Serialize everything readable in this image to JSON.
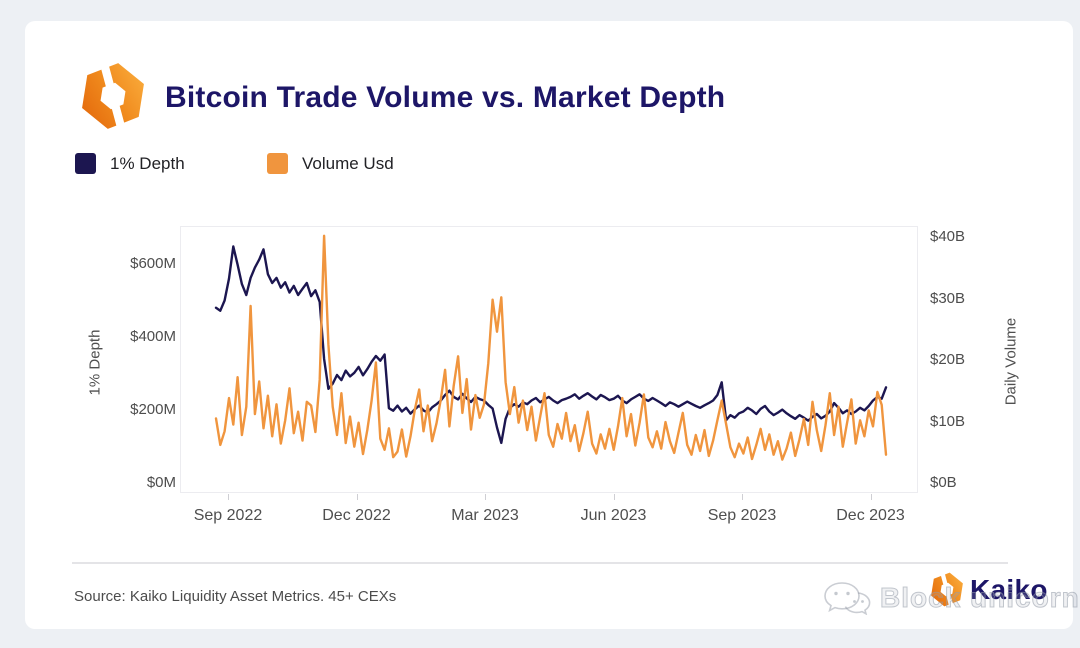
{
  "page": {
    "background": "#edf0f4",
    "card_background": "#ffffff"
  },
  "header": {
    "title": "Bitcoin Trade Volume vs. Market Depth",
    "logo_icon": "kaiko-hexagon-icon"
  },
  "colors": {
    "depth_navy": "#1c1650",
    "volume_orange": "#f0953e",
    "title_navy": "#1d1667",
    "axis_text_gray": "#4d4d4d"
  },
  "footer": {
    "source": "Source: Kaiko Liquidity Asset Metrics. 45+ CEXs",
    "brand_name": "Kaiko",
    "brand_icon": "kaiko-hexagon-icon",
    "watermark_text": "Block unicorn",
    "watermark_icon": "wechat-chat-bubbles-icon"
  },
  "chart_data": {
    "type": "line",
    "title": "Bitcoin Trade Volume vs. Market Depth",
    "x_ticks": [
      "Sep 2022",
      "Dec 2022",
      "Mar 2023",
      "Jun 2023",
      "Sep 2023",
      "Dec 2023"
    ],
    "x_range_note": "daily data, late Aug 2022 to mid Dec 2023",
    "grid": "off",
    "legend_position": "top-left",
    "left_axis": {
      "label": "1% Depth",
      "unit": "$M",
      "ticks": [
        "$0M",
        "$200M",
        "$400M",
        "$600M"
      ],
      "tick_values": [
        0,
        200,
        400,
        600
      ],
      "range": [
        0,
        700
      ]
    },
    "right_axis": {
      "label": "Daily Volume",
      "unit": "$B",
      "ticks": [
        "$0B",
        "$10B",
        "$20B",
        "$30B",
        "$40B"
      ],
      "tick_values": [
        0,
        10,
        20,
        30,
        40
      ],
      "range": [
        0,
        42
      ]
    },
    "series": [
      {
        "name": "1% Depth",
        "axis": "left",
        "unit": "$M",
        "color": "#1c1650",
        "values": [
          480,
          472,
          500,
          560,
          648,
          598,
          545,
          515,
          562,
          590,
          612,
          640,
          572,
          548,
          562,
          535,
          550,
          522,
          540,
          515,
          532,
          548,
          512,
          528,
          496,
          340,
          258,
          272,
          296,
          282,
          308,
          292,
          302,
          318,
          295,
          312,
          332,
          348,
          335,
          352,
          205,
          198,
          212,
          196,
          206,
          190,
          202,
          212,
          199,
          193,
          207,
          216,
          226,
          241,
          253,
          236,
          229,
          244,
          232,
          222,
          236,
          230,
          226,
          214,
          204,
          152,
          110,
          176,
          206,
          216,
          209,
          221,
          216,
          226,
          233,
          221,
          229,
          236,
          226,
          219,
          227,
          231,
          236,
          243,
          231,
          239,
          246,
          237,
          229,
          241,
          235,
          227,
          231,
          239,
          226,
          219,
          229,
          236,
          243,
          231,
          225,
          233,
          226,
          219,
          211,
          221,
          216,
          209,
          216,
          223,
          217,
          211,
          206,
          213,
          219,
          226,
          241,
          276,
          172,
          186,
          179,
          191,
          196,
          206,
          199,
          189,
          203,
          211,
          196,
          186,
          193,
          201,
          191,
          183,
          176,
          186,
          179,
          171,
          181,
          189,
          177,
          184,
          196,
          219,
          206,
          191,
          199,
          189,
          196,
          206,
          199,
          211,
          226,
          236,
          231,
          262
        ]
      },
      {
        "name": "Volume Usd",
        "axis": "right",
        "unit": "$B",
        "color": "#f0953e",
        "values": [
          10.5,
          6.2,
          8.4,
          13.8,
          9.5,
          17.2,
          7.8,
          12.4,
          28.8,
          11.2,
          16.5,
          8.9,
          14.2,
          7.6,
          12.8,
          6.4,
          10.2,
          15.4,
          8.1,
          11.6,
          6.9,
          13.2,
          12.6,
          8.3,
          16.8,
          40.2,
          22.5,
          12.4,
          7.8,
          14.6,
          6.5,
          10.8,
          5.9,
          9.8,
          4.7,
          8.6,
          13.4,
          19.6,
          7.2,
          5.4,
          8.9,
          4.2,
          5.1,
          8.7,
          4.3,
          7.6,
          11.9,
          15.2,
          8.4,
          12.6,
          6.8,
          9.7,
          13.6,
          18.4,
          9.2,
          15.8,
          20.6,
          11.4,
          16.9,
          8.7,
          14.3,
          10.6,
          12.8,
          19.5,
          29.8,
          24.6,
          30.2,
          16.4,
          11.2,
          15.6,
          9.8,
          13.4,
          8.6,
          12.4,
          6.9,
          10.8,
          14.6,
          7.8,
          5.9,
          9.6,
          7.2,
          11.4,
          6.8,
          9.4,
          5.2,
          8.1,
          11.6,
          6.4,
          4.8,
          7.9,
          5.6,
          8.8,
          5.4,
          9.2,
          13.8,
          7.6,
          11.2,
          6.1,
          9.8,
          14.4,
          7.4,
          5.8,
          8.4,
          5.6,
          9.9,
          6.8,
          4.9,
          8.2,
          11.4,
          6.2,
          4.6,
          7.8,
          5.2,
          8.6,
          4.4,
          6.9,
          10.2,
          13.4,
          9.6,
          5.8,
          4.2,
          6.4,
          4.8,
          7.4,
          3.9,
          6.2,
          8.8,
          5.4,
          7.9,
          4.6,
          6.8,
          3.8,
          5.6,
          8.2,
          4.4,
          7.1,
          10.4,
          6.2,
          13.2,
          8.6,
          5.2,
          9.4,
          14.6,
          7.8,
          12.4,
          5.9,
          9.8,
          13.6,
          6.4,
          10.2,
          7.6,
          11.8,
          9.2,
          14.8,
          12.7,
          4.6
        ]
      }
    ]
  }
}
